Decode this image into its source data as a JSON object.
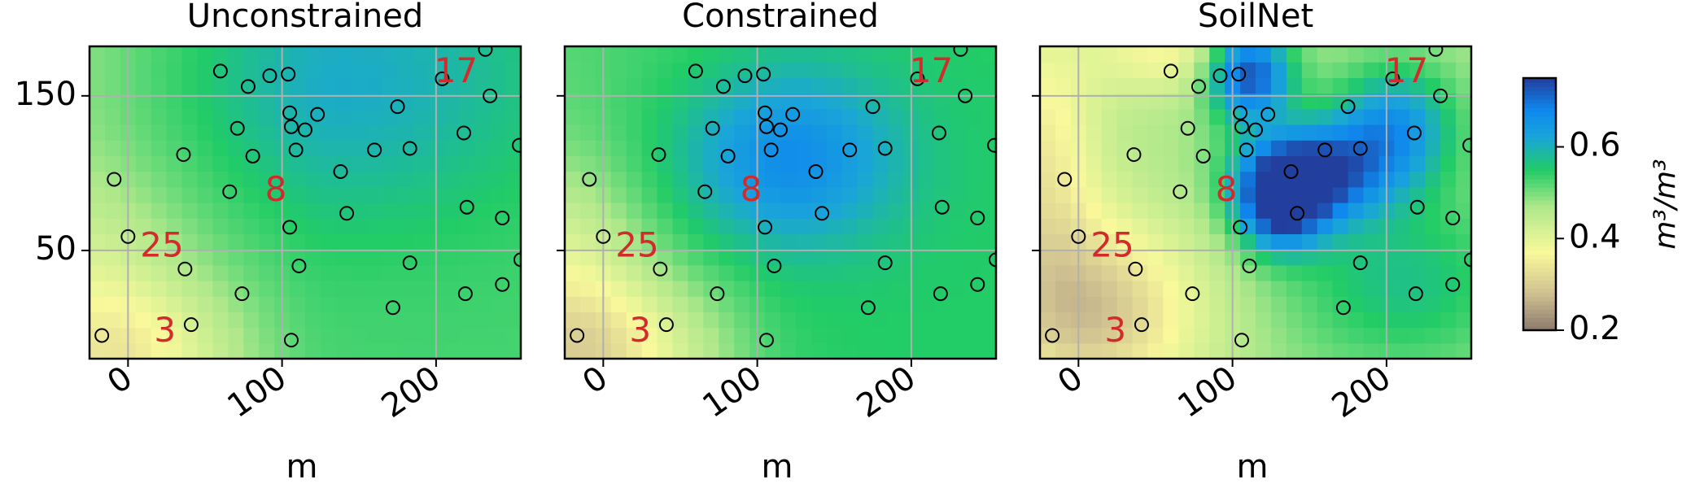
{
  "chart_data": {
    "type": "heatmap",
    "panels": [
      {
        "title": "Unconstrained",
        "model": "unconstrained",
        "xlabel": "m",
        "ylabel": "",
        "xticks": [
          0,
          100,
          200
        ],
        "yticks": [
          50,
          150
        ],
        "xlim": [
          -25,
          255
        ],
        "ylim": [
          -20,
          182
        ],
        "grid": true,
        "show_y_tick_labels": true
      },
      {
        "title": "Constrained",
        "model": "constrained",
        "xlabel": "m",
        "ylabel": "",
        "xticks": [
          0,
          100,
          200
        ],
        "yticks": [
          50,
          150
        ],
        "xlim": [
          -25,
          255
        ],
        "ylim": [
          -20,
          182
        ],
        "grid": true,
        "show_y_tick_labels": false
      },
      {
        "title": "SoilNet",
        "model": "soilnet",
        "xlabel": "m",
        "ylabel": "",
        "xticks": [
          0,
          100,
          200
        ],
        "yticks": [
          50,
          150
        ],
        "xlim": [
          -25,
          255
        ],
        "ylim": [
          -20,
          182
        ],
        "grid": true,
        "show_y_tick_labels": false
      }
    ],
    "colorbar": {
      "label": "m³/m³",
      "vmin": 0.2,
      "vmax": 0.75,
      "ticks": [
        0.2,
        0.4,
        0.6
      ],
      "colormap": "terrain_r",
      "color_stops": [
        {
          "v": 0.2,
          "color": "#8b7a6c"
        },
        {
          "v": 0.28,
          "color": "#cfc091"
        },
        {
          "v": 0.37,
          "color": "#f9f99b"
        },
        {
          "v": 0.47,
          "color": "#aee88b"
        },
        {
          "v": 0.55,
          "color": "#22cc66"
        },
        {
          "v": 0.62,
          "color": "#1aa6d8"
        },
        {
          "v": 0.68,
          "color": "#0f88ee"
        },
        {
          "v": 0.75,
          "color": "#223f9e"
        }
      ]
    },
    "sensors": [
      {
        "x": -17,
        "y": -5
      },
      {
        "x": -9,
        "y": 96
      },
      {
        "x": 0,
        "y": 59
      },
      {
        "x": 36,
        "y": 112
      },
      {
        "x": 37,
        "y": 38
      },
      {
        "x": 41,
        "y": 2
      },
      {
        "x": 60,
        "y": 166
      },
      {
        "x": 66,
        "y": 88
      },
      {
        "x": 71,
        "y": 129
      },
      {
        "x": 74,
        "y": 22
      },
      {
        "x": 78,
        "y": 156
      },
      {
        "x": 81,
        "y": 111
      },
      {
        "x": 92,
        "y": 163
      },
      {
        "x": 104,
        "y": 164
      },
      {
        "x": 105,
        "y": 65
      },
      {
        "x": 105,
        "y": 139
      },
      {
        "x": 106,
        "y": 130
      },
      {
        "x": 106,
        "y": -8
      },
      {
        "x": 109,
        "y": 115
      },
      {
        "x": 111,
        "y": 40
      },
      {
        "x": 115,
        "y": 128
      },
      {
        "x": 123,
        "y": 138
      },
      {
        "x": 138,
        "y": 101
      },
      {
        "x": 142,
        "y": 74
      },
      {
        "x": 160,
        "y": 115
      },
      {
        "x": 172,
        "y": 13
      },
      {
        "x": 175,
        "y": 143
      },
      {
        "x": 183,
        "y": 116
      },
      {
        "x": 183,
        "y": 42
      },
      {
        "x": 204,
        "y": 161
      },
      {
        "x": 218,
        "y": 126
      },
      {
        "x": 219,
        "y": 22
      },
      {
        "x": 220,
        "y": 78
      },
      {
        "x": 232,
        "y": 180
      },
      {
        "x": 235,
        "y": 150
      },
      {
        "x": 243,
        "y": 71
      },
      {
        "x": 243,
        "y": 28
      },
      {
        "x": 254,
        "y": 118
      },
      {
        "x": 255,
        "y": 44
      }
    ],
    "annotations": [
      {
        "text": "17",
        "x": 213,
        "y": 165
      },
      {
        "text": "8",
        "x": 96,
        "y": 88
      },
      {
        "text": "25",
        "x": 22,
        "y": 52
      },
      {
        "text": "3",
        "x": 24,
        "y": -3
      }
    ],
    "annotation_color": "#d22b2b"
  }
}
